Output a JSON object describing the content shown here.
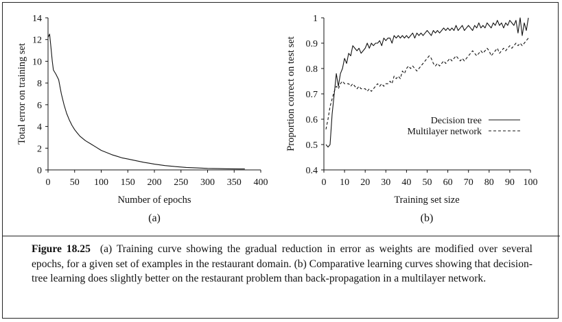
{
  "chart_data": [
    {
      "type": "line",
      "xlabel": "Number of epochs",
      "ylabel": "Total error on training set",
      "panel_label": "(a)",
      "xlim": [
        0,
        400
      ],
      "ylim": [
        0,
        14
      ],
      "xticks": [
        0,
        50,
        100,
        150,
        200,
        250,
        300,
        350,
        400
      ],
      "yticks": [
        0,
        2,
        4,
        6,
        8,
        10,
        12,
        14
      ],
      "grid": false,
      "series": [
        {
          "style": "solid",
          "x": [
            0,
            3,
            5,
            8,
            10,
            15,
            20,
            25,
            30,
            35,
            40,
            45,
            50,
            55,
            60,
            70,
            80,
            90,
            100,
            110,
            120,
            130,
            140,
            150,
            160,
            170,
            180,
            190,
            200,
            220,
            240,
            260,
            280,
            300,
            320,
            340,
            360,
            370
          ],
          "y": [
            12.2,
            12.5,
            11.5,
            10.0,
            9.2,
            8.8,
            8.3,
            7.0,
            6.0,
            5.2,
            4.6,
            4.1,
            3.7,
            3.4,
            3.1,
            2.7,
            2.4,
            2.1,
            1.8,
            1.6,
            1.4,
            1.25,
            1.1,
            1.0,
            0.9,
            0.8,
            0.7,
            0.62,
            0.53,
            0.4,
            0.3,
            0.23,
            0.18,
            0.14,
            0.12,
            0.1,
            0.09,
            0.09
          ]
        }
      ]
    },
    {
      "type": "line",
      "xlabel": "Training set size",
      "ylabel": "Proportion correct on test set",
      "panel_label": "(b)",
      "xlim": [
        0,
        100
      ],
      "ylim": [
        0.4,
        1.0
      ],
      "xticks": [
        0,
        10,
        20,
        30,
        40,
        50,
        60,
        70,
        80,
        90,
        100
      ],
      "yticks": [
        0.4,
        0.5,
        0.6,
        0.7,
        0.8,
        0.9,
        1
      ],
      "grid": false,
      "legend": "center-right",
      "series": [
        {
          "name": "Decision tree",
          "style": "solid",
          "x": [
            1,
            2,
            3,
            4,
            5,
            6,
            7,
            8,
            9,
            10,
            11,
            12,
            13,
            14,
            15,
            16,
            17,
            18,
            19,
            20,
            21,
            22,
            23,
            24,
            25,
            26,
            27,
            28,
            29,
            30,
            31,
            32,
            33,
            34,
            35,
            36,
            37,
            38,
            39,
            40,
            41,
            42,
            43,
            44,
            45,
            46,
            47,
            48,
            49,
            50,
            51,
            52,
            53,
            54,
            55,
            56,
            57,
            58,
            59,
            60,
            61,
            62,
            63,
            64,
            65,
            66,
            67,
            68,
            69,
            70,
            71,
            72,
            73,
            74,
            75,
            76,
            77,
            78,
            79,
            80,
            81,
            82,
            83,
            84,
            85,
            86,
            87,
            88,
            89,
            90,
            91,
            92,
            93,
            94,
            95,
            96,
            97,
            98,
            99
          ],
          "y": [
            0.5,
            0.49,
            0.5,
            0.62,
            0.7,
            0.78,
            0.73,
            0.78,
            0.8,
            0.84,
            0.82,
            0.86,
            0.85,
            0.89,
            0.88,
            0.87,
            0.88,
            0.86,
            0.87,
            0.88,
            0.9,
            0.88,
            0.9,
            0.89,
            0.9,
            0.9,
            0.91,
            0.89,
            0.92,
            0.91,
            0.92,
            0.92,
            0.9,
            0.93,
            0.92,
            0.93,
            0.92,
            0.93,
            0.92,
            0.93,
            0.92,
            0.93,
            0.94,
            0.92,
            0.94,
            0.93,
            0.94,
            0.93,
            0.94,
            0.95,
            0.94,
            0.93,
            0.95,
            0.94,
            0.95,
            0.94,
            0.95,
            0.96,
            0.95,
            0.96,
            0.95,
            0.96,
            0.95,
            0.97,
            0.95,
            0.96,
            0.97,
            0.95,
            0.96,
            0.97,
            0.96,
            0.95,
            0.97,
            0.96,
            0.98,
            0.96,
            0.97,
            0.96,
            0.98,
            0.97,
            0.96,
            0.98,
            0.97,
            0.99,
            0.97,
            0.98,
            0.96,
            0.98,
            0.97,
            0.99,
            0.98,
            0.97,
            0.99,
            0.94,
            1.0,
            0.93,
            0.98,
            0.95,
            1.0
          ]
        },
        {
          "name": "Multilayer network",
          "style": "dashed",
          "x": [
            1,
            2,
            3,
            4,
            5,
            6,
            7,
            8,
            9,
            10,
            11,
            12,
            13,
            14,
            15,
            16,
            17,
            18,
            19,
            20,
            21,
            22,
            23,
            24,
            25,
            26,
            27,
            28,
            29,
            30,
            31,
            32,
            33,
            34,
            35,
            36,
            37,
            38,
            39,
            40,
            41,
            42,
            43,
            44,
            45,
            46,
            47,
            48,
            49,
            50,
            51,
            52,
            53,
            54,
            55,
            56,
            57,
            58,
            59,
            60,
            61,
            62,
            63,
            64,
            65,
            66,
            67,
            68,
            69,
            70,
            71,
            72,
            73,
            74,
            75,
            76,
            77,
            78,
            79,
            80,
            81,
            82,
            83,
            84,
            85,
            86,
            87,
            88,
            89,
            90,
            91,
            92,
            93,
            94,
            95,
            96,
            97,
            98,
            99
          ],
          "y": [
            0.56,
            0.6,
            0.65,
            0.68,
            0.71,
            0.73,
            0.72,
            0.74,
            0.75,
            0.74,
            0.74,
            0.74,
            0.73,
            0.74,
            0.73,
            0.72,
            0.73,
            0.72,
            0.72,
            0.72,
            0.71,
            0.72,
            0.71,
            0.72,
            0.73,
            0.74,
            0.73,
            0.74,
            0.73,
            0.74,
            0.74,
            0.75,
            0.74,
            0.77,
            0.76,
            0.77,
            0.76,
            0.79,
            0.78,
            0.8,
            0.81,
            0.8,
            0.81,
            0.8,
            0.79,
            0.8,
            0.81,
            0.82,
            0.83,
            0.84,
            0.85,
            0.84,
            0.82,
            0.81,
            0.82,
            0.81,
            0.82,
            0.83,
            0.82,
            0.83,
            0.84,
            0.83,
            0.84,
            0.85,
            0.84,
            0.83,
            0.84,
            0.83,
            0.84,
            0.85,
            0.86,
            0.87,
            0.86,
            0.85,
            0.86,
            0.87,
            0.86,
            0.87,
            0.88,
            0.87,
            0.85,
            0.86,
            0.87,
            0.88,
            0.86,
            0.87,
            0.88,
            0.87,
            0.88,
            0.89,
            0.88,
            0.89,
            0.9,
            0.89,
            0.9,
            0.89,
            0.9,
            0.91,
            0.92
          ]
        }
      ]
    }
  ],
  "caption": {
    "label": "Figure 18.25",
    "text": "(a) Training curve showing the gradual reduction in error as weights are modified over several epochs, for a given set of examples in the restaurant domain. (b) Comparative learning curves showing that decision-tree learning does slightly better on the restaurant problem than back-propagation in a multilayer network."
  }
}
